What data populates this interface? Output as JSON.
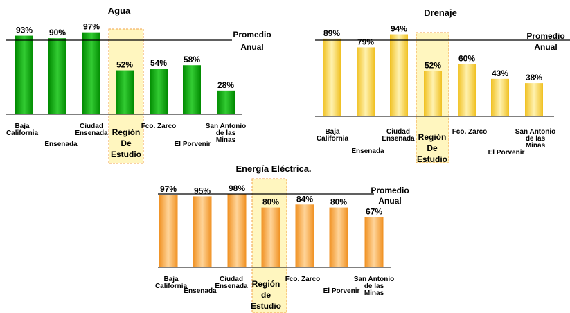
{
  "colors": {
    "green_dark": "#008a00",
    "green_light": "#33cc33",
    "yellow_dark": "#f0c020",
    "yellow_light": "#fff2b0",
    "orange_dark": "#f09020",
    "orange_light": "#ffd59a",
    "highlight_fill": "#fff6bf",
    "highlight_border": "#f2a24a"
  },
  "chart_data": [
    {
      "type": "bar",
      "title": "Agua",
      "categories": [
        "Baja California",
        "Ensenada",
        "Ciudad Ensenada",
        "Región De Estudio",
        "Fco. Zarco",
        "El Porvenir",
        "San Antonio de las Minas"
      ],
      "category_lines": [
        [
          "Baja",
          "California"
        ],
        [
          "Ensenada"
        ],
        [
          "Ciudad",
          "Ensenada"
        ],
        [
          "Región",
          "De",
          "Estudio"
        ],
        [
          "Fco. Zarco"
        ],
        [
          "El Porvenir"
        ],
        [
          "San Antonio",
          "de las",
          "Minas"
        ]
      ],
      "values": [
        93,
        90,
        97,
        52,
        54,
        58,
        28
      ],
      "value_labels": [
        "93%",
        "90%",
        "97%",
        "52%",
        "54%",
        "58%",
        "28%"
      ],
      "reference_line": {
        "label_lines": [
          "Promedio",
          "Anual"
        ],
        "value": 90
      },
      "highlight_category": "Región De Estudio",
      "ylim": [
        0,
        100
      ],
      "color": "green"
    },
    {
      "type": "bar",
      "title": "Drenaje",
      "categories": [
        "Baja California",
        "Ensenada",
        "Ciudad Ensenada",
        "Región De Estudio",
        "Fco. Zarco",
        "El Porvenir",
        "San Antonio de las Minas"
      ],
      "category_lines": [
        [
          "Baja",
          "California"
        ],
        [
          "Ensenada"
        ],
        [
          "Ciudad",
          "Ensenada"
        ],
        [
          "Región",
          "De",
          "Estudio"
        ],
        [
          "Fco. Zarco"
        ],
        [
          "El Porvenir"
        ],
        [
          "San Antonio",
          "de las",
          "Minas"
        ]
      ],
      "values": [
        89,
        79,
        94,
        52,
        60,
        43,
        38
      ],
      "value_labels": [
        "89%",
        "79%",
        "94%",
        "52%",
        "60%",
        "43%",
        "38%"
      ],
      "reference_line": {
        "label_lines": [
          "Promedio",
          "Anual"
        ],
        "value": 89
      },
      "highlight_category": "Región De Estudio",
      "ylim": [
        0,
        100
      ],
      "color": "yellow"
    },
    {
      "type": "bar",
      "title": "Energía Eléctrica.",
      "categories": [
        "Baja California",
        "Ensenada",
        "Ciudad Ensenada",
        "Región de Estudio",
        "Fco. Zarco",
        "El Porvenir",
        "San Antonio de las Minas"
      ],
      "category_lines": [
        [
          "Baja",
          "California"
        ],
        [
          "Ensenada"
        ],
        [
          "Ciudad",
          "Ensenada"
        ],
        [
          "Región",
          "de",
          "Estudio"
        ],
        [
          "Fco. Zarco"
        ],
        [
          "El Porvenir"
        ],
        [
          "San Antonio",
          "de las",
          "Minas"
        ]
      ],
      "values": [
        97,
        95,
        98,
        80,
        84,
        80,
        67
      ],
      "value_labels": [
        "97%",
        "95%",
        "98%",
        "80%",
        "84%",
        "80%",
        "67%"
      ],
      "reference_line": {
        "label_lines": [
          "Promedio",
          "Anual"
        ],
        "value": 98
      },
      "highlight_category": "Región de Estudio",
      "ylim": [
        0,
        100
      ],
      "color": "orange"
    }
  ]
}
